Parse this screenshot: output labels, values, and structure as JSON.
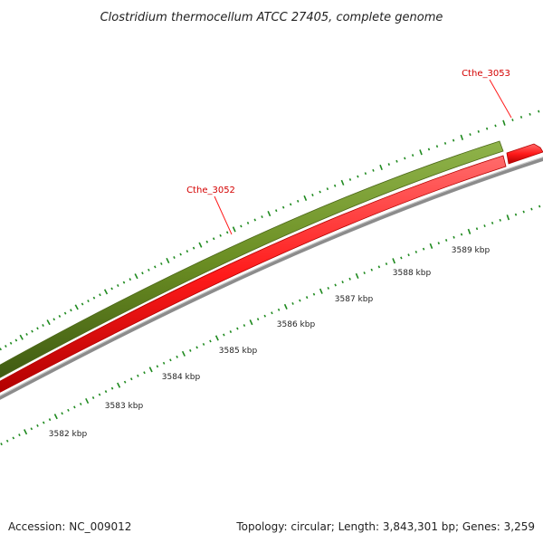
{
  "title": "Clostridium thermocellum ATCC 27405, complete genome",
  "footer": {
    "accession": "Accession: NC_009012",
    "summary": "Topology: circular; Length: 3,843,301 bp; Genes: 3,259"
  },
  "colors": {
    "tick": "#1f8a1f",
    "forward_feature": "#6b8e23",
    "reverse_feature": "#ff1a1a",
    "backbone": "#8c8c8c",
    "gene_label": "#d40000"
  },
  "gene_labels": [
    {
      "name": "Cthe_3052"
    },
    {
      "name": "Cthe_3053"
    }
  ],
  "kbp_labels": [
    "3582 kbp",
    "3583 kbp",
    "3584 kbp",
    "3585 kbp",
    "3586 kbp",
    "3587 kbp",
    "3588 kbp",
    "3589 kbp"
  ]
}
